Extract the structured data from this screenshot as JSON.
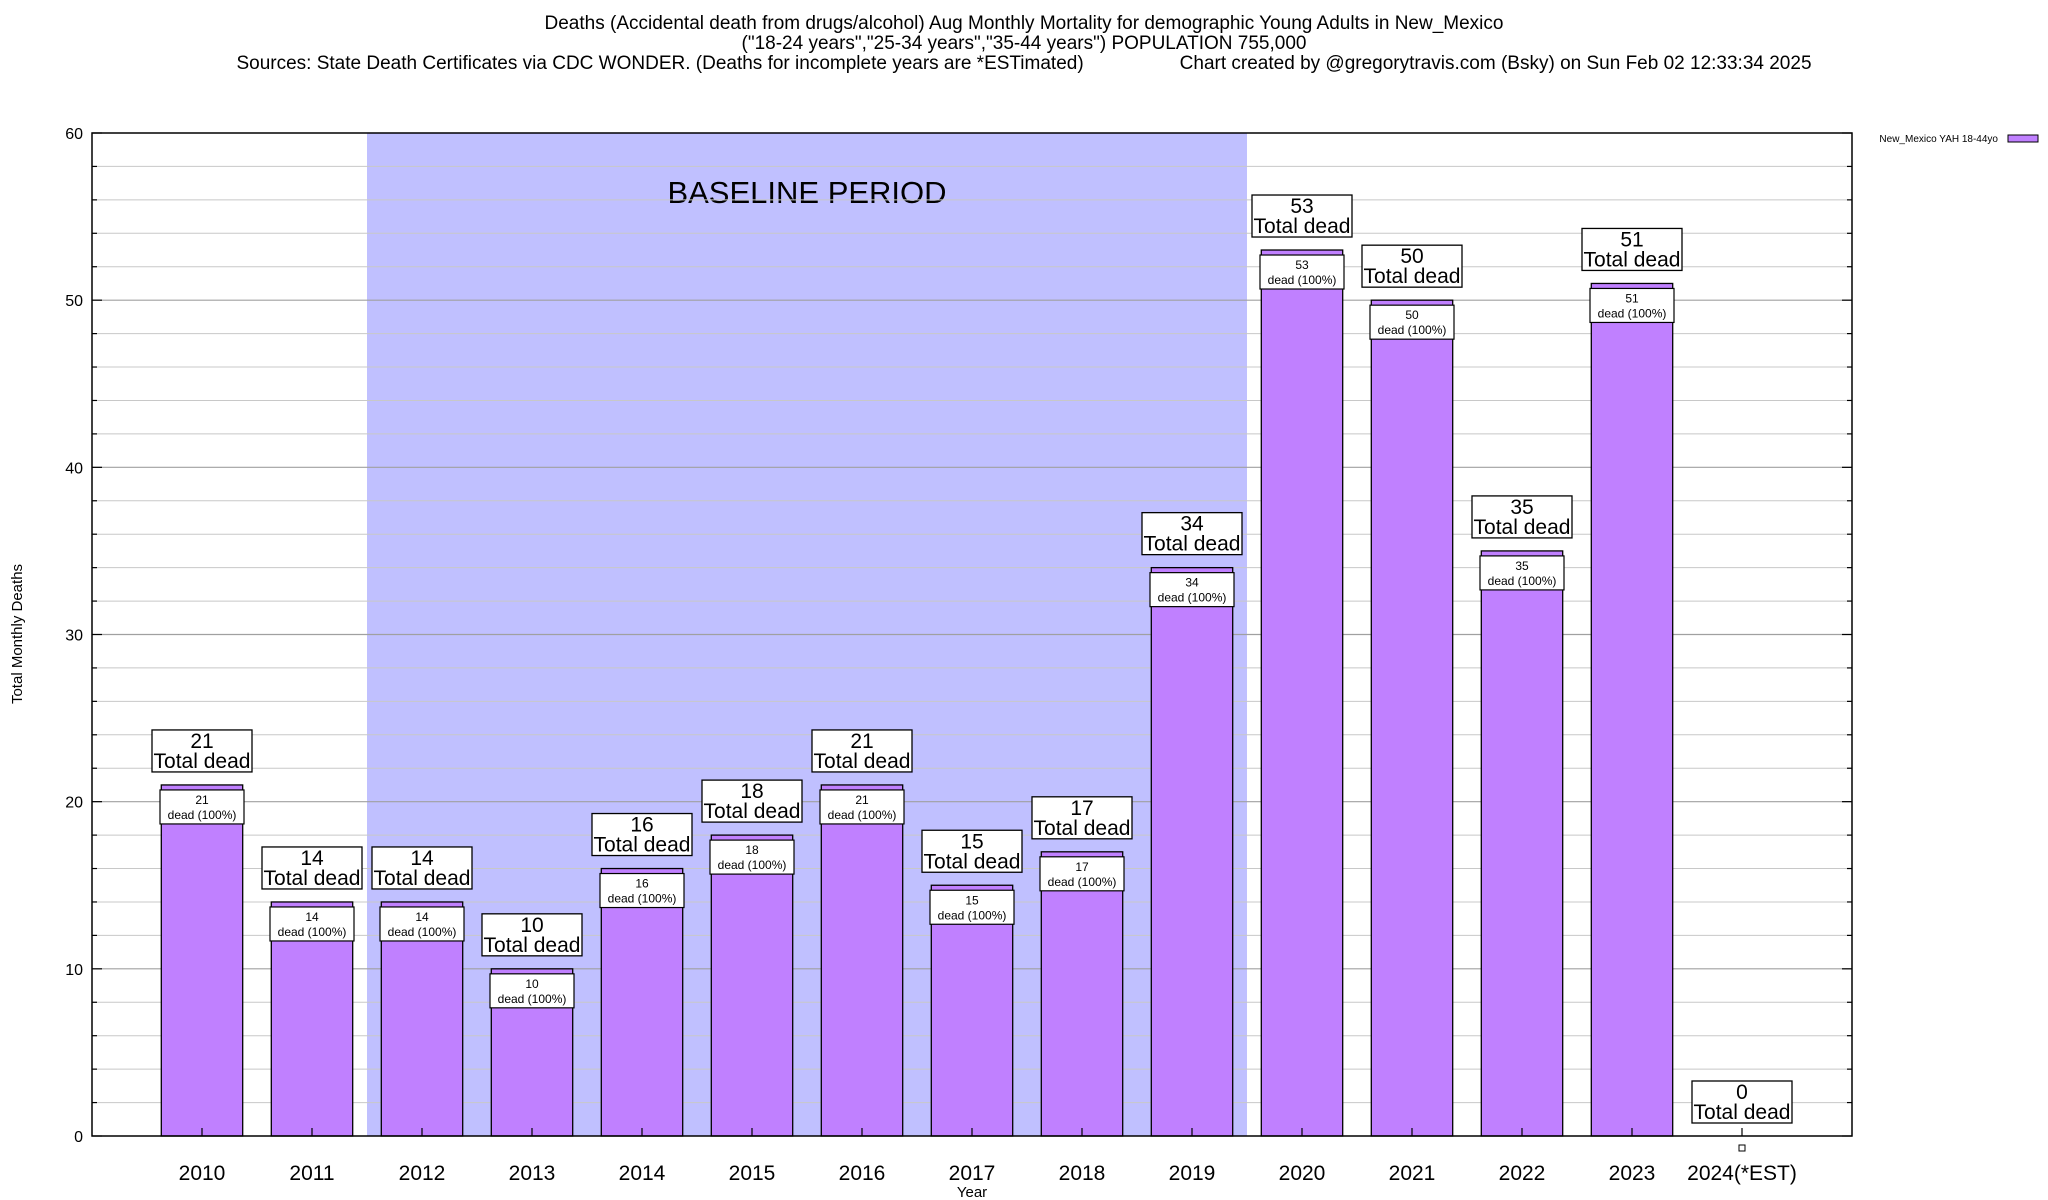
{
  "chart_data": {
    "type": "bar",
    "title_lines": [
      "Deaths (Accidental death from drugs/alcohol) Aug Monthly Mortality for demographic Young Adults in New_Mexico",
      "(\"18-24 years\",\"25-34 years\",\"35-44 years\") POPULATION 755,000"
    ],
    "sources": "Sources: State Death Certificates via CDC WONDER. (Deaths for incomplete years are *ESTimated)",
    "credit": "Chart created by @gregorytravis.com (Bsky) on Sun Feb 02 12:33:34 2025",
    "xlabel": "Year",
    "ylabel": "Total Monthly Deaths",
    "ylim": [
      0,
      60
    ],
    "yticks": [
      0,
      10,
      20,
      30,
      40,
      50,
      60
    ],
    "categories": [
      "2010",
      "2011",
      "2012",
      "2013",
      "2014",
      "2015",
      "2016",
      "2017",
      "2018",
      "2019",
      "2020",
      "2021",
      "2022",
      "2023",
      "2024(*EST)"
    ],
    "series": [
      {
        "name": "New_Mexico YAH 18-44yo",
        "color": "#c080ff",
        "values": [
          21,
          14,
          14,
          10,
          16,
          18,
          21,
          15,
          17,
          34,
          53,
          50,
          35,
          51,
          0
        ]
      }
    ],
    "total_label_suffix": "Total dead",
    "inner_label_suffix": "dead (100%)",
    "baseline": {
      "label": "BASELINE PERIOD",
      "start_category": "2012",
      "end_category": "2019",
      "color": "#c0c0ff"
    }
  }
}
